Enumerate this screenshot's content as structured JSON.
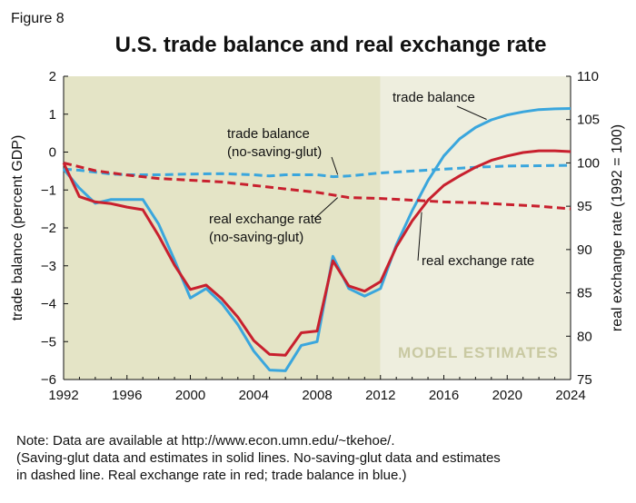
{
  "figure_label": "Figure 8",
  "note_lines": [
    "Note: Data are available at http://www.econ.umn.edu/~tkehoe/.",
    "(Saving-glut data and estimates in solid lines. No-saving-glut data and estimates",
    "in dashed line. Real exchange rate in red; trade balance in blue.)"
  ],
  "colors": {
    "history_shade": "#e4e4c6",
    "estimates_shade": "#eeeede",
    "estimates_label": "#c9c9a2",
    "trade_balance": "#3aa6dd",
    "real_exchange_rate": "#c8202e",
    "annotation": "#111111"
  },
  "chart_data": {
    "type": "line",
    "title": "U.S. trade balance and real exchange rate",
    "xlabel": "",
    "ylabel": "trade balance (percent GDP)",
    "y2label": "real exchange rate (1992 = 100)",
    "xlim": [
      1992,
      2024
    ],
    "ylim": [
      -6,
      2
    ],
    "y2lim": [
      75,
      110
    ],
    "x_ticks": [
      1992,
      1996,
      2000,
      2004,
      2008,
      2012,
      2016,
      2020,
      2024
    ],
    "y_ticks": [
      2,
      1,
      0,
      -1,
      -2,
      -3,
      -4,
      -5,
      -6
    ],
    "y2_ticks": [
      110,
      105,
      100,
      95,
      90,
      85,
      80,
      75
    ],
    "model_estimates_start": 2012,
    "model_estimates_label": "MODEL ESTIMATES",
    "grid": false,
    "series": [
      {
        "name": "trade balance",
        "axis": "left",
        "style": "solid",
        "color_key": "trade_balance",
        "x": [
          1992,
          1993,
          1994,
          1995,
          1996,
          1997,
          1998,
          1999,
          2000,
          2001,
          2002,
          2003,
          2004,
          2005,
          2006,
          2007,
          2008,
          2009,
          2010,
          2011,
          2012,
          2013,
          2014,
          2015,
          2016,
          2017,
          2018,
          2019,
          2020,
          2021,
          2022,
          2023,
          2024
        ],
        "y": [
          -0.45,
          -0.95,
          -1.35,
          -1.25,
          -1.25,
          -1.25,
          -1.9,
          -2.85,
          -3.85,
          -3.6,
          -4.0,
          -4.55,
          -5.25,
          -5.75,
          -5.77,
          -5.1,
          -5.0,
          -2.75,
          -3.6,
          -3.8,
          -3.6,
          -2.45,
          -1.55,
          -0.75,
          -0.1,
          0.35,
          0.65,
          0.85,
          0.98,
          1.06,
          1.12,
          1.14,
          1.15
        ]
      },
      {
        "name": "trade balance (no-saving-glut)",
        "axis": "left",
        "style": "dashed",
        "color_key": "trade_balance",
        "x": [
          1992,
          1993,
          1994,
          1995,
          1996,
          1998,
          2000,
          2002,
          2004,
          2005,
          2006,
          2008,
          2009,
          2010,
          2012,
          2014,
          2016,
          2018,
          2020,
          2022,
          2024
        ],
        "y": [
          -0.45,
          -0.48,
          -0.53,
          -0.58,
          -0.6,
          -0.6,
          -0.58,
          -0.57,
          -0.6,
          -0.63,
          -0.6,
          -0.6,
          -0.65,
          -0.63,
          -0.55,
          -0.5,
          -0.45,
          -0.4,
          -0.37,
          -0.36,
          -0.35
        ]
      },
      {
        "name": "real exchange rate",
        "axis": "right",
        "style": "solid",
        "color_key": "real_exchange_rate",
        "x": [
          1992,
          1993,
          1994,
          1995,
          1996,
          1997,
          1998,
          1999,
          2000,
          2001,
          2002,
          2003,
          2004,
          2005,
          2006,
          2007,
          2008,
          2009,
          2010,
          2011,
          2012,
          2013,
          2014,
          2015,
          2016,
          2017,
          2018,
          2019,
          2020,
          2021,
          2022,
          2023,
          2024
        ],
        "y": [
          100,
          96.1,
          95.5,
          95.3,
          94.9,
          94.6,
          91.6,
          88.2,
          85.4,
          85.9,
          84.3,
          82.2,
          79.5,
          77.9,
          77.8,
          80.4,
          80.6,
          88.7,
          85.8,
          85.2,
          86.3,
          90.3,
          93.3,
          95.7,
          97.4,
          98.5,
          99.5,
          100.3,
          100.8,
          101.2,
          101.4,
          101.4,
          101.3
        ]
      },
      {
        "name": "real exchange rate (no-saving-glut)",
        "axis": "right",
        "style": "dashed",
        "color_key": "real_exchange_rate",
        "x": [
          1992,
          1994,
          1996,
          1998,
          2000,
          2002,
          2004,
          2006,
          2008,
          2010,
          2012,
          2014,
          2016,
          2018,
          2020,
          2022,
          2024
        ],
        "y": [
          100,
          99.1,
          98.6,
          98.2,
          98.0,
          97.8,
          97.4,
          97.0,
          96.6,
          96.0,
          95.9,
          95.7,
          95.5,
          95.4,
          95.2,
          95.0,
          94.7
        ]
      }
    ],
    "annotations": [
      {
        "text_lines": [
          "trade balance"
        ],
        "series": "trade balance",
        "at_x": 2018.7
      },
      {
        "text_lines": [
          "trade balance",
          "(no-saving-glut)"
        ],
        "series": "trade balance (no-saving-glut)",
        "at_x": 2009.3
      },
      {
        "text_lines": [
          "real exchange rate",
          "(no-saving-glut)"
        ],
        "series": "real exchange rate (no-saving-glut)",
        "at_x": 2009.3
      },
      {
        "text_lines": [
          "real exchange rate"
        ],
        "series": "real exchange rate",
        "at_x": 2014.6
      }
    ]
  }
}
